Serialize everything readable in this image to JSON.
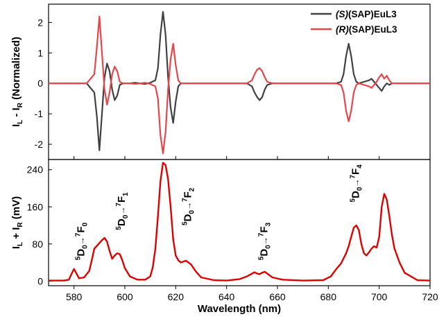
{
  "chart_data": [
    {
      "type": "line",
      "panel": "top",
      "title": "",
      "xlabel": "",
      "ylabel_main": "I",
      "ylabel_sub1": "L",
      "ylabel_mid": " - I",
      "ylabel_sub2": "R",
      "ylabel_tail": " (Normalized)",
      "xlim": [
        570,
        720
      ],
      "ylim": [
        -2.5,
        2.6
      ],
      "yticks": [
        "2",
        "1",
        "0",
        "-1",
        "-2"
      ],
      "ytick_values": [
        2,
        1,
        0,
        -1,
        -2
      ],
      "grid": false,
      "legend_placement": "top-right",
      "series": [
        {
          "legend_italic": "(S)",
          "legend_rest": "(SAP)EuL3",
          "color": "#404040",
          "x": [
            570,
            585,
            588,
            589,
            590,
            591,
            592,
            593,
            594,
            595,
            596,
            597,
            598,
            599,
            600,
            602,
            604,
            606,
            608,
            610,
            612,
            613,
            614,
            615,
            616,
            617,
            618,
            619,
            620,
            621,
            622,
            624,
            630,
            640,
            648,
            650,
            651,
            652,
            653,
            654,
            655,
            656,
            658,
            665,
            675,
            683,
            685,
            686,
            687,
            688,
            689,
            690,
            691,
            692,
            694,
            696,
            697,
            698,
            699,
            700,
            701,
            702,
            703,
            704,
            705,
            707,
            720
          ],
          "y": [
            0,
            0,
            -0.3,
            -1.1,
            -2.2,
            -1.0,
            0.2,
            0.65,
            0.4,
            -0.2,
            -0.55,
            -0.4,
            -0.05,
            -0.01,
            0,
            0,
            0.02,
            0,
            -0.02,
            0.02,
            0.1,
            0.5,
            1.6,
            2.35,
            1.6,
            0.2,
            -0.8,
            -1.3,
            -0.6,
            -0.1,
            0,
            0,
            0,
            0,
            0,
            -0.1,
            -0.3,
            -0.45,
            -0.55,
            -0.45,
            -0.2,
            -0.05,
            0,
            0,
            0,
            0,
            0.05,
            0.3,
            0.9,
            1.3,
            0.9,
            0.3,
            0.05,
            0,
            0.05,
            0.1,
            0.15,
            0.05,
            -0.05,
            -0.15,
            -0.25,
            -0.1,
            0,
            -0.05,
            0,
            0,
            0
          ]
        },
        {
          "legend_italic": "(R)",
          "legend_rest": "(SAP)EuL3",
          "color": "#e8454a",
          "x": [
            570,
            585,
            588,
            589,
            590,
            591,
            592,
            593,
            594,
            595,
            596,
            597,
            598,
            599,
            600,
            602,
            604,
            606,
            608,
            610,
            612,
            613,
            614,
            615,
            616,
            617,
            618,
            619,
            620,
            621,
            622,
            624,
            630,
            640,
            648,
            650,
            651,
            652,
            653,
            654,
            655,
            656,
            658,
            665,
            675,
            683,
            685,
            686,
            687,
            688,
            689,
            690,
            691,
            692,
            694,
            696,
            697,
            698,
            699,
            700,
            701,
            702,
            703,
            704,
            705,
            707,
            720
          ],
          "y": [
            0,
            0,
            0.3,
            1.2,
            2.2,
            1.0,
            -0.2,
            -0.7,
            -0.3,
            0.3,
            0.55,
            0.4,
            0.05,
            0.01,
            0,
            0,
            -0.02,
            0,
            0.02,
            -0.02,
            -0.1,
            -0.5,
            -1.7,
            -2.3,
            -1.6,
            -0.2,
            0.8,
            1.3,
            0.6,
            0.1,
            0,
            0,
            0,
            0,
            0,
            0.1,
            0.3,
            0.45,
            0.5,
            0.4,
            0.2,
            0.05,
            0,
            0,
            0,
            0,
            -0.05,
            -0.3,
            -0.9,
            -1.25,
            -0.9,
            -0.3,
            -0.05,
            0,
            -0.05,
            -0.1,
            -0.15,
            -0.05,
            0.05,
            0.2,
            0.3,
            0.15,
            0.25,
            0.1,
            0,
            0,
            0
          ]
        }
      ]
    },
    {
      "type": "line",
      "panel": "bottom",
      "title": "",
      "xlabel": "Wavelength (nm)",
      "ylabel_main": "I",
      "ylabel_sub1": "L",
      "ylabel_mid": " + I",
      "ylabel_sub2": "R",
      "ylabel_tail": " (mV)",
      "xlim": [
        570,
        720
      ],
      "ylim": [
        -10,
        262
      ],
      "xticks": [
        "580",
        "600",
        "620",
        "640",
        "660",
        "680",
        "700",
        "720"
      ],
      "xtick_values": [
        580,
        600,
        620,
        640,
        660,
        680,
        700,
        720
      ],
      "yticks": [
        "0",
        "80",
        "160",
        "240"
      ],
      "ytick_values": [
        0,
        80,
        160,
        240
      ],
      "grid": false,
      "series": [
        {
          "color": "#dd0000",
          "x": [
            570,
            576,
            578,
            579,
            580,
            581,
            582,
            584,
            586,
            587,
            588,
            589,
            590,
            591,
            592,
            593,
            594,
            595,
            596,
            597,
            598,
            599,
            600,
            602,
            605,
            608,
            610,
            611,
            612,
            613,
            614,
            615,
            616,
            617,
            618,
            619,
            620,
            621,
            622,
            624,
            626,
            628,
            630,
            635,
            640,
            645,
            648,
            650,
            651,
            652,
            653,
            654,
            655,
            656,
            658,
            662,
            670,
            678,
            681,
            683,
            685,
            687,
            688,
            689,
            690,
            691,
            692,
            693,
            694,
            695,
            696,
            697,
            698,
            699,
            700,
            701,
            702,
            703,
            704,
            705,
            706,
            708,
            710,
            715,
            720
          ],
          "y": [
            1,
            1,
            3,
            15,
            26,
            16,
            6,
            8,
            22,
            45,
            70,
            76,
            82,
            88,
            93,
            85,
            65,
            48,
            55,
            60,
            58,
            45,
            28,
            10,
            3,
            3,
            10,
            30,
            70,
            140,
            215,
            255,
            250,
            220,
            160,
            90,
            55,
            45,
            40,
            44,
            36,
            20,
            8,
            2,
            1,
            4,
            10,
            16,
            19,
            16,
            15,
            18,
            20,
            16,
            8,
            3,
            1,
            2,
            10,
            25,
            38,
            60,
            75,
            95,
            115,
            120,
            110,
            80,
            60,
            55,
            62,
            70,
            75,
            72,
            95,
            160,
            188,
            175,
            140,
            100,
            70,
            40,
            18,
            2,
            1
          ]
        }
      ],
      "annotations": [
        {
          "a": "5",
          "b": "D",
          "c": "0",
          "arrow": "→",
          "d": "7",
          "e": "F",
          "f": "0",
          "x": 584,
          "y": 45
        },
        {
          "a": "5",
          "b": "D",
          "c": "0",
          "arrow": "→",
          "d": "7",
          "e": "F",
          "f": "1",
          "x": 600,
          "y": 110
        },
        {
          "a": "5",
          "b": "D",
          "c": "0",
          "arrow": "→",
          "d": "7",
          "e": "F",
          "f": "2",
          "x": 626,
          "y": 120
        },
        {
          "a": "5",
          "b": "D",
          "c": "0",
          "arrow": "→",
          "d": "7",
          "e": "F",
          "f": "3",
          "x": 656,
          "y": 45
        },
        {
          "a": "5",
          "b": "D",
          "c": "0",
          "arrow": "→",
          "d": "7",
          "e": "F",
          "f": "4",
          "x": 692,
          "y": 170
        }
      ]
    }
  ]
}
